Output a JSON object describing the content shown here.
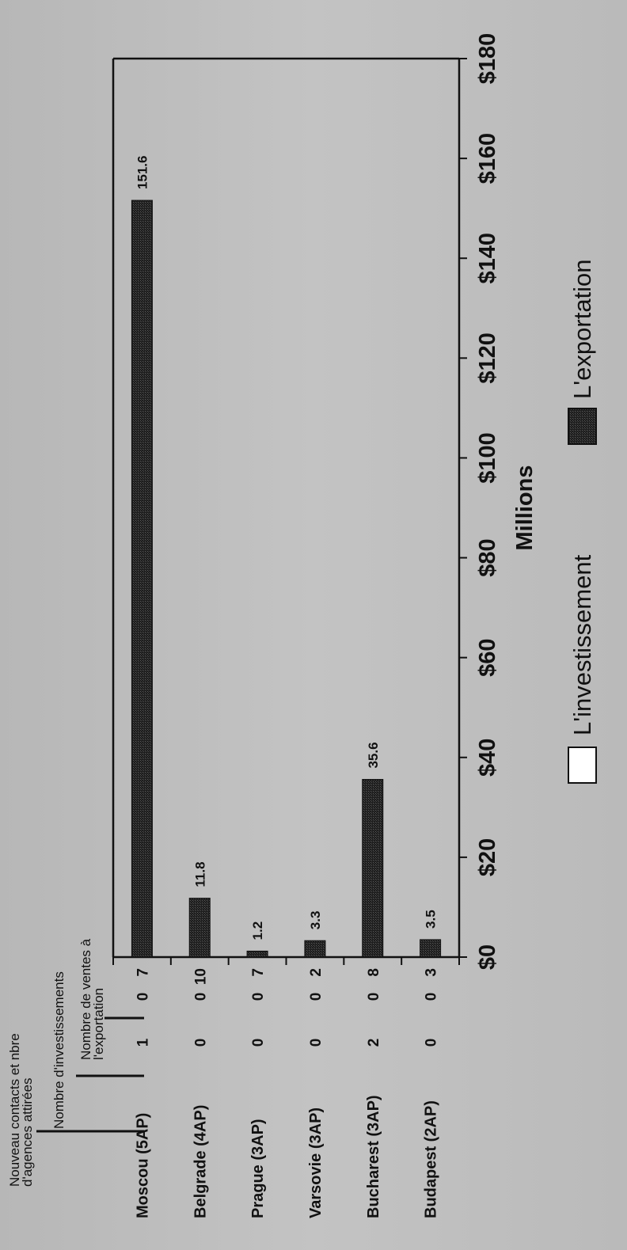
{
  "chart_data": {
    "type": "bar",
    "orientation": "horizontal",
    "headers": {
      "contacts_line1": "Nouveau contacts et nbre",
      "contacts_line2": "d'agences attirées",
      "investments": "Nombre d'investissements",
      "sales_line1": "Nombre de ventes à",
      "sales_line2": "l'exportation"
    },
    "categories": [
      "Moscou (5AP)",
      "Belgrade (4AP)",
      "Prague (3AP)",
      "Varsovie (3AP)",
      "Bucharest (3AP)",
      "Budapest (2AP)"
    ],
    "contacts": [
      1,
      0,
      0,
      0,
      2,
      0
    ],
    "investments_count": [
      0,
      0,
      0,
      0,
      0,
      0
    ],
    "export_sales_count": [
      7,
      10,
      7,
      2,
      8,
      3
    ],
    "series": [
      {
        "name": "L'investissement",
        "values": [
          0,
          0,
          0,
          0,
          0,
          0
        ],
        "color": "#ffffff"
      },
      {
        "name": "L'exportation",
        "values": [
          151.6,
          11.8,
          1.2,
          3.3,
          35.6,
          3.5
        ],
        "color": "#2e2e2e"
      }
    ],
    "value_labels": [
      "151.6",
      "11.8",
      "1.2",
      "3.3",
      "35.6",
      "3.5"
    ],
    "xlabel": "Millions",
    "xlim": [
      0,
      180
    ],
    "xticks": [
      "$0",
      "$20",
      "$40",
      "$60",
      "$80",
      "$100",
      "$120",
      "$140",
      "$160",
      "$180"
    ],
    "legend_position": "bottom",
    "grid": false
  }
}
